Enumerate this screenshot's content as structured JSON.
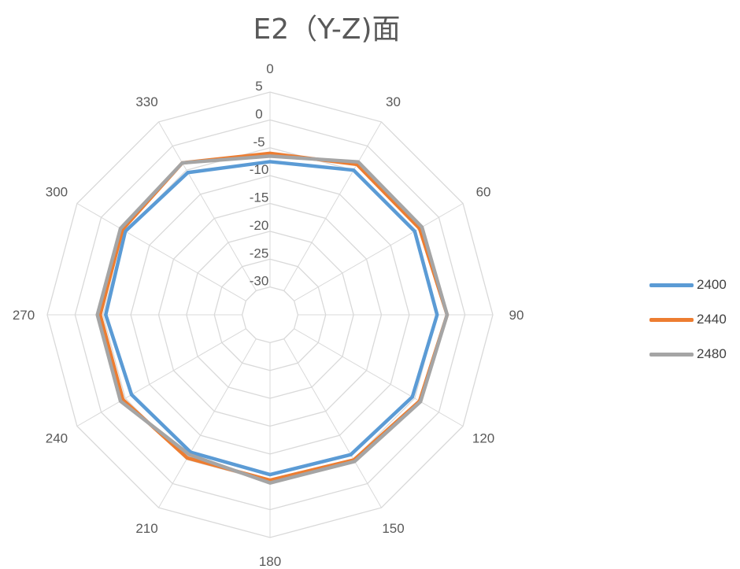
{
  "chart_data": {
    "type": "radar",
    "title": "E2（Y-Z)面",
    "categories": [
      "0",
      "30",
      "60",
      "90",
      "120",
      "150",
      "180",
      "210",
      "240",
      "270",
      "300",
      "330"
    ],
    "radial_ticks": [
      "5",
      "0",
      "-5",
      "-10",
      "-15",
      "-20",
      "-25",
      "-30"
    ],
    "rlim": [
      -35,
      5
    ],
    "grid": true,
    "legend_position": "right",
    "series": [
      {
        "name": "2400",
        "color": "#5b9bd5",
        "values": [
          -7.5,
          -5.0,
          -5.0,
          -5.0,
          -5.5,
          -6.0,
          -6.3,
          -6.5,
          -6.3,
          -5.5,
          -5.0,
          -5.5
        ]
      },
      {
        "name": "2440",
        "color": "#ed7d31",
        "values": [
          -6.0,
          -3.8,
          -4.0,
          -3.2,
          -4.0,
          -4.9,
          -5.3,
          -5.3,
          -4.5,
          -4.5,
          -4.4,
          -3.5
        ]
      },
      {
        "name": "2480",
        "color": "#a5a5a5",
        "values": [
          -6.5,
          -3.3,
          -3.5,
          -3.2,
          -3.8,
          -4.6,
          -4.8,
          -6.0,
          -4.0,
          -4.0,
          -4.0,
          -3.5
        ]
      }
    ]
  }
}
